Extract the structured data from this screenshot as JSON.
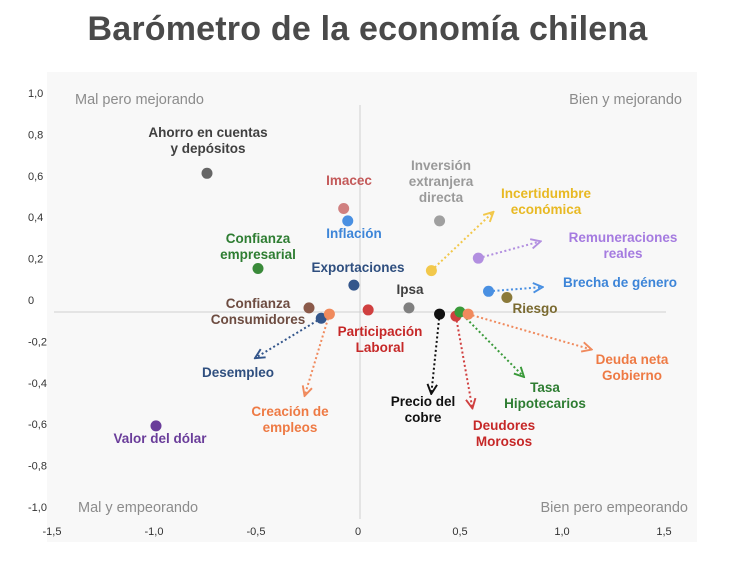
{
  "chart_data": {
    "type": "scatter",
    "title": "Barómetro de la economía chilena",
    "xlim": [
      -1.5,
      1.5
    ],
    "ylim": [
      -1.0,
      1.0
    ],
    "x_ticks": [
      "-1,5",
      "-1,0",
      "-0,5",
      "0",
      "0,5",
      "1,0",
      "1,5"
    ],
    "y_ticks": [
      "1,0",
      "0,8",
      "0,6",
      "0,4",
      "0,2",
      "0",
      "-0,2",
      "-0,4",
      "-0,6",
      "-0,8",
      "-1,0"
    ],
    "quadrant_labels": {
      "top_left": "Mal pero mejorando",
      "top_right": "Bien y  mejorando",
      "bottom_left": "Mal y  empeorando",
      "bottom_right": "Bien pero empeorando"
    },
    "points": [
      {
        "label": [
          "Ahorro en cuentas",
          "y depósitos"
        ],
        "x": -0.75,
        "y": 0.67,
        "color": "#666666",
        "label_color": "#404040"
      },
      {
        "label": [
          "Imacec"
        ],
        "x": -0.08,
        "y": 0.5,
        "color": "#d08080",
        "label_color": "#c45a5a"
      },
      {
        "label": [
          "Inflación"
        ],
        "x": -0.06,
        "y": 0.44,
        "color": "#4a90e2",
        "label_color": "#3d85d8"
      },
      {
        "label": [
          "Inversión",
          "extranjera",
          "directa"
        ],
        "x": 0.39,
        "y": 0.44,
        "color": "#a0a0a0",
        "label_color": "#9a9a9a"
      },
      {
        "label": [
          "Confianza",
          "empresarial"
        ],
        "x": -0.5,
        "y": 0.21,
        "color": "#3a8a3a",
        "label_color": "#2e7d32"
      },
      {
        "label": [
          "Exportaciones"
        ],
        "x": -0.03,
        "y": 0.13,
        "color": "#34568b",
        "label_color": "#2f4f7f"
      },
      {
        "label": [
          "Incertidumbre",
          "económica"
        ],
        "x": 0.35,
        "y": 0.2,
        "x2": 0.65,
        "y2": 0.48,
        "color": "#f2c84b",
        "label_color": "#e8b923"
      },
      {
        "label": [
          "Remuneraciones",
          "reales"
        ],
        "x": 0.58,
        "y": 0.26,
        "x2": 0.88,
        "y2": 0.34,
        "color": "#b28fe0",
        "label_color": "#a57be0"
      },
      {
        "label": [
          "Brecha de género"
        ],
        "x": 0.63,
        "y": 0.1,
        "x2": 0.89,
        "y2": 0.12,
        "color": "#4a90e2",
        "label_color": "#3d85d8"
      },
      {
        "label": [
          "Riesgo"
        ],
        "x": 0.72,
        "y": 0.07,
        "color": "#8b7a3a",
        "label_color": "#7a6a30"
      },
      {
        "label": [
          "Ipsa"
        ],
        "x": 0.24,
        "y": 0.02,
        "color": "#808080",
        "label_color": "#404040"
      },
      {
        "label": [
          "Confianza",
          "Consumidores"
        ],
        "x": -0.25,
        "y": 0.02,
        "color": "#8b5a4a",
        "label_color": "#6d4c41"
      },
      {
        "label": [
          "Participación",
          "Laboral"
        ],
        "x": 0.04,
        "y": 0.01,
        "color": "#d04040",
        "label_color": "#c62828"
      },
      {
        "label": [
          "Desempleo"
        ],
        "x": -0.19,
        "y": -0.03,
        "x2": -0.51,
        "y2": -0.22,
        "color": "#34568b",
        "label_color": "#2f4f7f"
      },
      {
        "label": [
          "Creación de",
          "empleos"
        ],
        "x": -0.15,
        "y": -0.01,
        "x2": -0.27,
        "y2": -0.4,
        "color": "#f08a5d",
        "label_color": "#ee7a44"
      },
      {
        "label": [
          "Precio del",
          "cobre"
        ],
        "x": 0.39,
        "y": -0.01,
        "x2": 0.35,
        "y2": -0.39,
        "color": "#111111",
        "label_color": "#111111"
      },
      {
        "label": [
          "Deudores",
          "Morosos"
        ],
        "x": 0.47,
        "y": -0.02,
        "x2": 0.55,
        "y2": -0.46,
        "color": "#d04040",
        "label_color": "#c62828"
      },
      {
        "label": [
          "Tasa",
          "Hipotecarios"
        ],
        "x": 0.49,
        "y": 0.0,
        "x2": 0.8,
        "y2": -0.31,
        "color": "#3a9a3a",
        "label_color": "#2e7d32"
      },
      {
        "label": [
          "Deuda neta",
          "Gobierno"
        ],
        "x": 0.53,
        "y": -0.01,
        "x2": 1.13,
        "y2": -0.18,
        "color": "#f08a5d",
        "label_color": "#ee7a44"
      },
      {
        "label": [
          "Valor del dólar"
        ],
        "x": -1.0,
        "y": -0.55,
        "color": "#6a3d9a",
        "label_color": "#6a3d9a"
      }
    ]
  }
}
